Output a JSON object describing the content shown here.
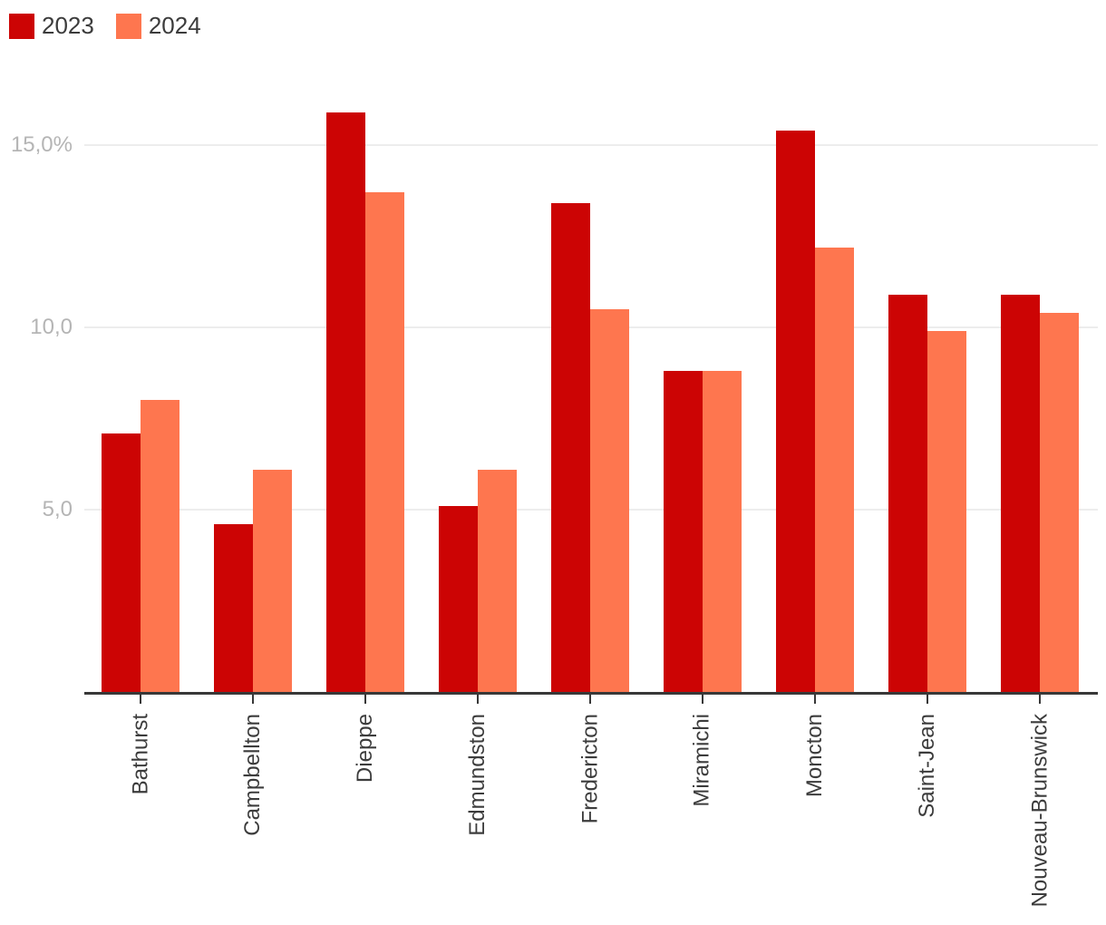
{
  "legend": {
    "items": [
      {
        "label": "2023",
        "color": "#cc0404"
      },
      {
        "label": "2024",
        "color": "#fe764f"
      }
    ]
  },
  "chart_data": {
    "type": "bar",
    "title": "",
    "categories": [
      "Bathurst",
      "Campbellton",
      "Dieppe",
      "Edmundston",
      "Fredericton",
      "Miramichi",
      "Moncton",
      "Saint-Jean",
      "Nouveau-Brunswick"
    ],
    "series": [
      {
        "name": "2023",
        "color": "#cc0404",
        "values": [
          7.1,
          4.6,
          15.9,
          5.1,
          13.4,
          8.8,
          15.4,
          10.9,
          10.9
        ]
      },
      {
        "name": "2024",
        "color": "#fe764f",
        "values": [
          8.0,
          6.1,
          13.7,
          6.1,
          10.5,
          8.8,
          12.2,
          9.9,
          10.4
        ]
      }
    ],
    "unit": "%",
    "yticks": [
      {
        "value": 5,
        "label": "5,0"
      },
      {
        "value": 10,
        "label": "10,0"
      },
      {
        "value": 15,
        "label": "15,0%"
      }
    ],
    "ylim": [
      0,
      16.7
    ],
    "grid": true,
    "legend_position": "top-left",
    "x_label_rotation": -90
  },
  "colors": {
    "series_2023": "#cc0404",
    "series_2024": "#fe764f",
    "gridline": "#ededed",
    "axis": "#383838",
    "y_tick_text": "#b5b5b5",
    "x_tick_text": "#3c3c3c",
    "background": "#ffffff"
  }
}
